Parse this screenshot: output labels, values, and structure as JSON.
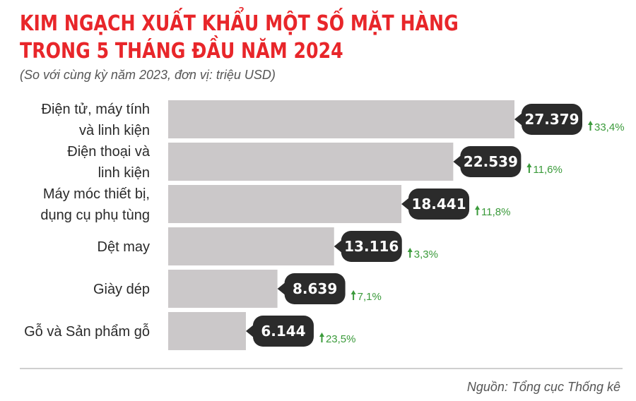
{
  "header": {
    "title_line1": "KIM NGẠCH XUẤT KHẨU MỘT SỐ MẶT HÀNG",
    "title_line2": "TRONG 5 THÁNG ĐẦU NĂM 2024",
    "subtitle": "(So với cùng kỳ năm 2023, đơn vị: triệu USD)"
  },
  "footer": {
    "source": "Nguồn: Tổng cục Thống kê"
  },
  "colors": {
    "title": "#e8262a",
    "bar": "#cbc8c9",
    "label_bubble": "#2b2b2b",
    "increase": "#3a9a3a"
  },
  "icons": {
    "change": "arrow-up-icon"
  },
  "chart_data": {
    "type": "bar",
    "orientation": "horizontal",
    "categories": [
      [
        "Điện tử, máy tính",
        "và linh kiện"
      ],
      [
        "Điện thoại và",
        "linh kiện"
      ],
      [
        "Máy móc thiết bị,",
        "dụng cụ phụ tùng"
      ],
      [
        "Dệt may"
      ],
      [
        "Giày dép"
      ],
      [
        "Gỗ và Sản phẩm gỗ"
      ]
    ],
    "values": [
      27379,
      22539,
      18441,
      13116,
      8639,
      6144
    ],
    "value_labels": [
      "27.379",
      "22.539",
      "18.441",
      "13.116",
      "8.639",
      "6.144"
    ],
    "change_labels": [
      "33,4%",
      "11,6%",
      "11,8%",
      "3,3%",
      "7,1%",
      "23,5%"
    ],
    "change_direction": [
      "up",
      "up",
      "up",
      "up",
      "up",
      "up"
    ],
    "xlim": [
      0,
      27379
    ],
    "grid": false,
    "legend": "none"
  }
}
